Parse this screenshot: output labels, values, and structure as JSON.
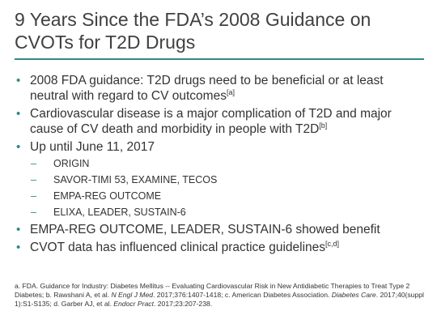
{
  "title": "9 Years Since the FDA’s 2008 Guidance on CVOTs for T2D Drugs",
  "bullets": {
    "b1_text": "2008 FDA guidance: T2D drugs need to be beneficial or at least neutral with regard to CV outcomes",
    "b1_sup": "[a]",
    "b2_text": "Cardiovascular disease is a major complication of T2D and major cause of CV death and morbidity in people with T2D",
    "b2_sup": "[b]",
    "b3_text": "Up until June 11, 2017",
    "sub": [
      "ORIGIN",
      "SAVOR-TIMI 53, EXAMINE, TECOS",
      "EMPA-REG OUTCOME",
      "ELIXA, LEADER, SUSTAIN-6"
    ],
    "b4_text": "EMPA-REG OUTCOME, LEADER, SUSTAIN-6 showed benefit",
    "b5_text": "CVOT data has influenced clinical practice guidelines",
    "b5_sup": "[c,d]"
  },
  "footnote": {
    "part1": "a. FDA. Guidance for Industry: Diabetes Mellitus -- Evaluating Cardiovascular Risk in New Antidiabetic Therapies to Treat Type 2 Diabetes; b. Rawshani A, et al. ",
    "journal1": "N Engl J Med",
    "part2": ". 2017;376:1407-1418; c. American Diabetes Association. ",
    "journal2": "Diabetes Care",
    "part3": ". 2017;40(suppl 1):S1-S135; d. Garber AJ, et al. ",
    "journal3": "Endocr Pract",
    "part4": ". 2017;23:207-238."
  },
  "colors": {
    "accent": "#2e8a86",
    "text": "#333333"
  }
}
